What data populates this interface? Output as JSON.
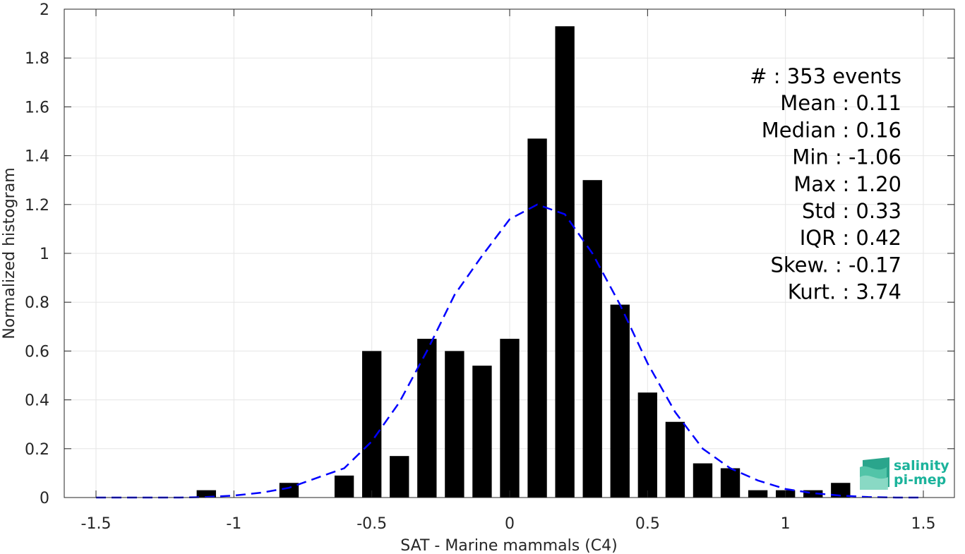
{
  "chart_data": {
    "type": "bar",
    "xlabel": "SAT - Marine mammals (C4)",
    "ylabel": "Normalized histogram",
    "xlim": [
      -1.5,
      1.5
    ],
    "ylim": [
      0,
      2
    ],
    "grid": true,
    "x_ticks": [
      "-1.5",
      "-1",
      "-0.5",
      "0",
      "0.5",
      "1",
      "1.5"
    ],
    "y_ticks": [
      "0",
      "0.2",
      "0.4",
      "0.6",
      "0.8",
      "1",
      "1.2",
      "1.4",
      "1.6",
      "1.8",
      "2"
    ],
    "bin_width": 0.1,
    "x": [
      -1.1,
      -0.8,
      -0.6,
      -0.5,
      -0.4,
      -0.3,
      -0.2,
      -0.1,
      0.0,
      0.1,
      0.2,
      0.3,
      0.4,
      0.5,
      0.6,
      0.7,
      0.8,
      0.9,
      1.0,
      1.1,
      1.2
    ],
    "values": [
      0.03,
      0.06,
      0.09,
      0.6,
      0.17,
      0.65,
      0.6,
      0.54,
      0.65,
      1.47,
      1.93,
      1.3,
      0.79,
      0.43,
      0.31,
      0.14,
      0.12,
      0.03,
      0.03,
      0.03,
      0.06
    ],
    "bar_color": "#000000",
    "fit_curve": {
      "style": "dashed",
      "color": "#0000ff",
      "x": [
        -1.5,
        -1.4,
        -1.3,
        -1.2,
        -1.1,
        -1.0,
        -0.9,
        -0.8,
        -0.7,
        -0.6,
        -0.5,
        -0.4,
        -0.3,
        -0.2,
        -0.1,
        0.0,
        0.1,
        0.2,
        0.3,
        0.4,
        0.5,
        0.6,
        0.7,
        0.8,
        0.9,
        1.0,
        1.1,
        1.2,
        1.3,
        1.4,
        1.5
      ],
      "y": [
        0,
        0,
        0,
        0,
        0.002,
        0.008,
        0.02,
        0.04,
        0.08,
        0.12,
        0.23,
        0.39,
        0.6,
        0.83,
        0.99,
        1.14,
        1.2,
        1.16,
        1.0,
        0.79,
        0.55,
        0.35,
        0.2,
        0.12,
        0.07,
        0.035,
        0.018,
        0.008,
        0.002,
        0.0,
        0.0
      ]
    },
    "annotations": [
      "#  : 353 events",
      "Mean : 0.11",
      "Median : 0.16",
      "Min : -1.06",
      "Max : 1.20",
      "Std : 0.33",
      "IQR : 0.42",
      "Skew. : -0.17",
      "Kurt. : 3.74"
    ]
  },
  "logo": {
    "line1": "salinity",
    "line2": "pi-mep",
    "color": "#1bb39b"
  }
}
